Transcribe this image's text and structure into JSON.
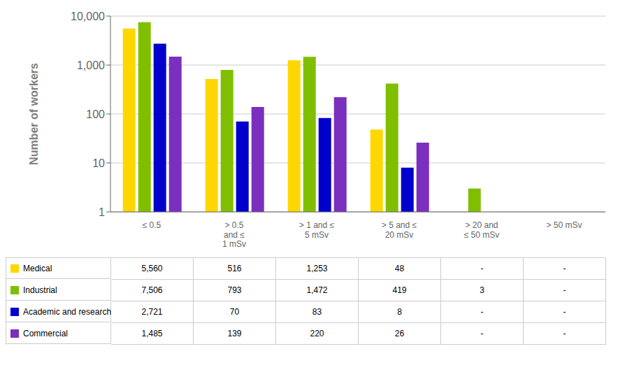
{
  "chart_data": {
    "type": "bar",
    "categories": [
      "≤ 0.5",
      "> 0.5\nand ≤\n1 mSv",
      "> 1 and ≤\n5 mSv",
      "> 5 and ≤\n20 mSv",
      "> 20 and\n≤ 50 mSv",
      "> 50 mSv"
    ],
    "series": [
      {
        "name": "Medical",
        "color": "#FFD700",
        "values": [
          5560,
          516,
          1253,
          48,
          null,
          null
        ],
        "value_labels": [
          "5,560",
          "516",
          "1,253",
          "48",
          "-",
          "-"
        ]
      },
      {
        "name": "Industrial",
        "color": "#7FBF00",
        "values": [
          7506,
          793,
          1472,
          419,
          3,
          null
        ],
        "value_labels": [
          "7,506",
          "793",
          "1,472",
          "419",
          "3",
          "-"
        ]
      },
      {
        "name": "Academic and research",
        "color": "#0000CD",
        "values": [
          2721,
          70,
          83,
          8,
          null,
          null
        ],
        "value_labels": [
          "2,721",
          "70",
          "83",
          "8",
          "-",
          "-"
        ]
      },
      {
        "name": "Commercial",
        "color": "#7B2FBE",
        "values": [
          1485,
          139,
          220,
          26,
          null,
          null
        ],
        "value_labels": [
          "1,485",
          "139",
          "220",
          "26",
          "-",
          "-"
        ]
      }
    ],
    "ylabel": "Number of workers",
    "log": "y",
    "ylim": [
      1,
      10000
    ],
    "yticks": [
      1,
      10,
      100,
      {
        "value": 1000,
        "label": "1,000"
      },
      {
        "value": 10000,
        "label": "10,000"
      }
    ],
    "grid": true
  }
}
